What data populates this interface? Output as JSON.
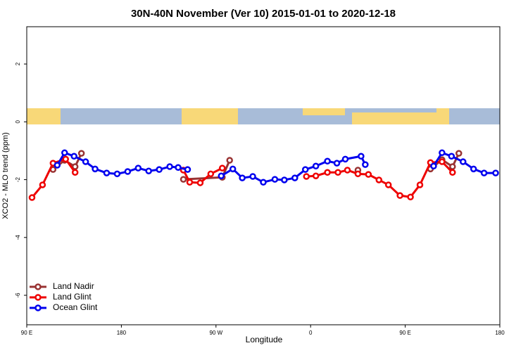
{
  "chart_data": {
    "type": "line",
    "title": "30N-40N November (Ver 10)   2015-01-01 to 2020-12-18",
    "x_label": "Longitude",
    "y_label": "XCO2 - MLO trend (ppm)",
    "xlim": [
      90,
      540
    ],
    "ylim": [
      -7.02,
      3.29
    ],
    "xticks": [
      {
        "value": 90,
        "label": "90 E"
      },
      180,
      {
        "value": 270,
        "label": "90 W"
      },
      {
        "value": 360,
        "label": "0"
      },
      {
        "value": 450,
        "label": "90 E"
      },
      {
        "value": 540,
        "label": "180"
      }
    ],
    "yticks": [
      -6,
      -4,
      -2,
      0,
      2
    ],
    "legend": "bottomleft",
    "series": [
      {
        "name": "Land Nadir",
        "color": "#993333",
        "x": [
          115,
          126,
          136,
          142,
          null,
          239,
          276,
          283,
          null,
          405,
          null,
          474,
          485,
          495,
          501
        ],
        "values": [
          -1.65,
          -1.33,
          -1.55,
          -1.09,
          null,
          -1.99,
          -1.92,
          -1.33,
          null,
          -1.67,
          null,
          -1.63,
          -1.31,
          -1.55,
          -1.09
        ]
      },
      {
        "name": "Land Glint",
        "color": "#ee0000",
        "x": [
          95,
          105,
          115,
          127,
          136,
          null,
          239,
          245,
          255,
          265,
          276,
          null,
          356,
          365,
          376,
          386,
          395,
          405,
          415,
          425,
          434,
          445,
          455,
          464,
          474,
          485,
          495
        ],
        "values": [
          -2.62,
          -2.18,
          -1.43,
          -1.29,
          -1.75,
          null,
          -1.67,
          -2.09,
          -2.11,
          -1.8,
          -1.6,
          null,
          -1.89,
          -1.87,
          -1.75,
          -1.75,
          -1.67,
          -1.8,
          -1.82,
          -2.01,
          -2.18,
          -2.55,
          -2.6,
          -2.18,
          -1.41,
          -1.38,
          -1.75
        ]
      },
      {
        "name": "Ocean Glint",
        "color": "#0000ee",
        "x": [
          119,
          126,
          135,
          146,
          155,
          166,
          176,
          186,
          196,
          206,
          216,
          226,
          234,
          243,
          null,
          275,
          286,
          295,
          305,
          315,
          326,
          335,
          345,
          355,
          365,
          376,
          385,
          393,
          408,
          412,
          null,
          477,
          485,
          494,
          505,
          515,
          525,
          536
        ],
        "values": [
          -1.5,
          -1.07,
          -1.19,
          -1.38,
          -1.63,
          -1.77,
          -1.8,
          -1.72,
          -1.6,
          -1.7,
          -1.65,
          -1.55,
          -1.58,
          -1.65,
          null,
          -1.87,
          -1.63,
          -1.94,
          -1.89,
          -2.09,
          -1.99,
          -2.01,
          -1.94,
          -1.65,
          -1.53,
          -1.36,
          -1.43,
          -1.29,
          -1.19,
          -1.48,
          null,
          -1.53,
          -1.07,
          -1.19,
          -1.38,
          -1.63,
          -1.77,
          -1.77
        ]
      }
    ]
  }
}
